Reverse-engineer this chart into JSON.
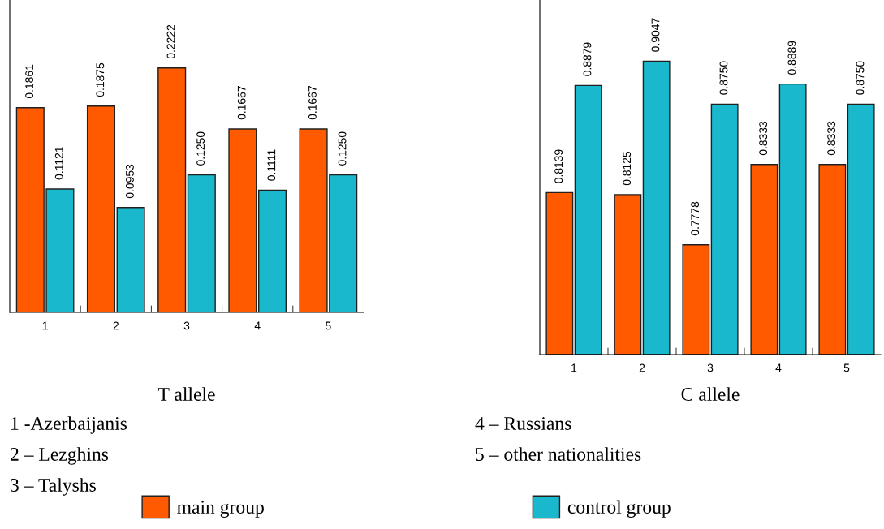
{
  "chart_data": [
    {
      "type": "bar",
      "xlabel": "T allele",
      "categories": [
        "1",
        "2",
        "3",
        "4",
        "5"
      ],
      "series": [
        {
          "name": "main group",
          "color": "#ff5a00",
          "values": [
            0.1861,
            0.1875,
            0.2222,
            0.1667,
            0.1667
          ],
          "value_labels": [
            "0.1861",
            "0.1875",
            "0.2222",
            "0.1667",
            "0.1667"
          ]
        },
        {
          "name": "control group",
          "color": "#1ab8cc",
          "values": [
            0.1121,
            0.0953,
            0.125,
            0.1111,
            0.125
          ],
          "value_labels": [
            "0.1121",
            "0.0953",
            "0.1250",
            "0.1111",
            "0.1250"
          ]
        }
      ],
      "ylim": [
        0,
        0.284
      ],
      "tick_labels": "x",
      "grid": false,
      "legend": "bottom",
      "annotations": [
        "1 -Azerbaijanis",
        "2 – Lezghins",
        "3 – Talyshs"
      ]
    },
    {
      "type": "bar",
      "xlabel": "C allele",
      "categories": [
        "1",
        "2",
        "3",
        "4",
        "5"
      ],
      "series": [
        {
          "name": "main group",
          "color": "#ff5a00",
          "values": [
            0.8139,
            0.8125,
            0.7778,
            0.8333,
            0.8333
          ],
          "value_labels": [
            "0.8139",
            "0.8125",
            "0.7778",
            "0.8333",
            "0.8333"
          ]
        },
        {
          "name": "control group",
          "color": "#1ab8cc",
          "values": [
            0.8879,
            0.9047,
            0.875,
            0.8889,
            0.875
          ],
          "value_labels": [
            "0.8879",
            "0.9047",
            "0.8750",
            "0.8889",
            "0.8750"
          ]
        }
      ],
      "ylim": [
        0.702,
        0.947
      ],
      "tick_labels": "x",
      "grid": false,
      "legend": "bottom",
      "annotations": [
        "4 – Russians",
        "5 – other nationalities"
      ]
    }
  ]
}
